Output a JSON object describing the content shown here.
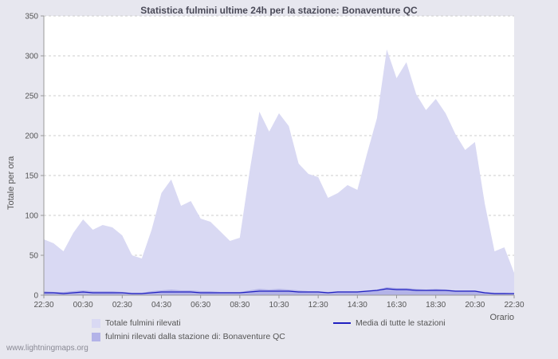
{
  "watermark": "www.lightningmaps.org",
  "colors": {
    "page_background": "#e7e7ef",
    "plot_background": "#ffffff",
    "grid": "#cccccc",
    "axis": "#999999",
    "area_total": "#d9d9f3",
    "area_station": "#b3b3e8",
    "media_line": "#2020c0"
  },
  "chart_data": {
    "type": "area",
    "title": "Statistica fulmini ultime 24h per la stazione: Bonaventure QC",
    "xlabel": "Orario",
    "ylabel": "Totale per ora",
    "ylim": [
      0,
      350
    ],
    "y_ticks": [
      0,
      50,
      100,
      150,
      200,
      250,
      300,
      350
    ],
    "grid": "horizontal-dashed",
    "legend_position": "bottom",
    "x_tick_every": 4,
    "x_tick_labels": [
      "22:30",
      "00:30",
      "02:30",
      "04:30",
      "06:30",
      "08:30",
      "10:30",
      "12:30",
      "14:30",
      "16:30",
      "18:30",
      "20:30",
      "22:30"
    ],
    "x": [
      "22:30",
      "23:00",
      "23:30",
      "00:00",
      "00:30",
      "01:00",
      "01:30",
      "02:00",
      "02:30",
      "03:00",
      "03:30",
      "04:00",
      "04:30",
      "05:00",
      "05:30",
      "06:00",
      "06:30",
      "07:00",
      "07:30",
      "08:00",
      "08:30",
      "09:00",
      "09:30",
      "10:00",
      "10:30",
      "11:00",
      "11:30",
      "12:00",
      "12:30",
      "13:00",
      "13:30",
      "14:00",
      "14:30",
      "15:00",
      "15:30",
      "16:00",
      "16:30",
      "17:00",
      "17:30",
      "18:00",
      "18:30",
      "19:00",
      "19:30",
      "20:00",
      "20:30",
      "21:00",
      "21:30",
      "22:00",
      "22:30"
    ],
    "series": [
      {
        "name": "Totale fulmini rilevati",
        "type": "area",
        "color": "#d9d9f3",
        "values": [
          70,
          65,
          55,
          78,
          95,
          82,
          88,
          85,
          75,
          50,
          46,
          82,
          128,
          145,
          112,
          118,
          96,
          92,
          80,
          68,
          72,
          155,
          230,
          205,
          228,
          212,
          165,
          152,
          148,
          122,
          128,
          138,
          132,
          178,
          222,
          308,
          272,
          292,
          252,
          232,
          246,
          228,
          202,
          182,
          192,
          115,
          55,
          60,
          28
        ]
      },
      {
        "name": "fulmini rilevati dalla stazione di: Bonaventure QC",
        "type": "area",
        "color": "#b3b3e8",
        "values": [
          5,
          4,
          4,
          5,
          6,
          5,
          5,
          5,
          4,
          3,
          3,
          5,
          6,
          7,
          6,
          6,
          5,
          5,
          4,
          4,
          4,
          6,
          8,
          7,
          8,
          7,
          6,
          5,
          5,
          4,
          5,
          5,
          5,
          6,
          7,
          10,
          9,
          9,
          8,
          7,
          8,
          7,
          6,
          6,
          6,
          4,
          3,
          3,
          2
        ]
      },
      {
        "name": "Media di tutte le stazioni",
        "type": "line",
        "color": "#2020c0",
        "values": [
          3,
          3,
          2,
          3,
          4,
          3,
          3,
          3,
          3,
          2,
          2,
          3,
          4,
          4,
          4,
          4,
          3,
          3,
          3,
          3,
          3,
          4,
          5,
          5,
          5,
          5,
          4,
          4,
          4,
          3,
          4,
          4,
          4,
          5,
          6,
          8,
          7,
          7,
          6,
          6,
          6,
          6,
          5,
          5,
          5,
          3,
          2,
          2,
          2
        ]
      }
    ]
  }
}
